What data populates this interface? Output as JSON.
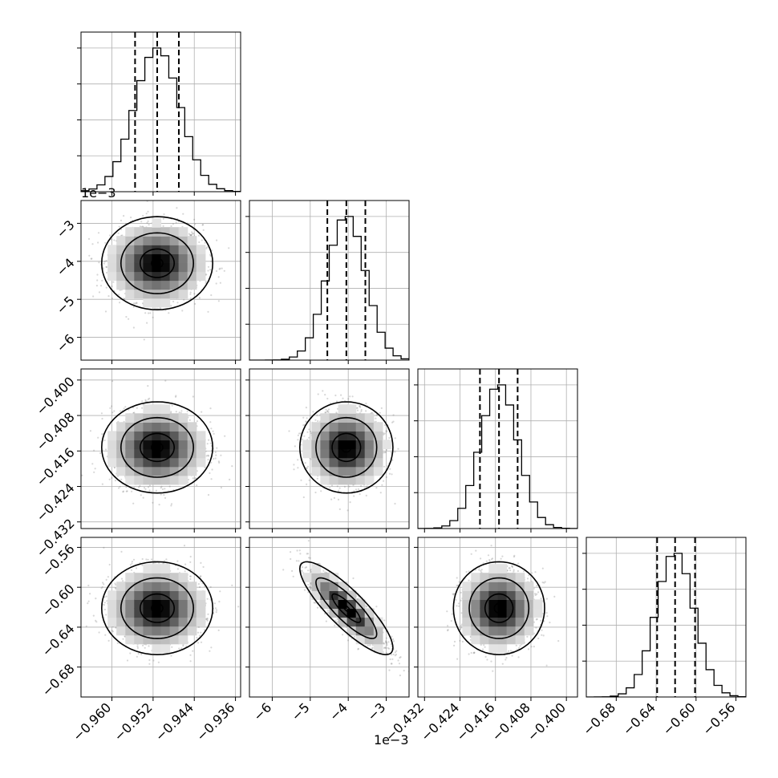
{
  "chart_data": {
    "type": "corner",
    "params": [
      {
        "range": [
          -0.966,
          -0.935
        ],
        "ticks": [
          -0.96,
          -0.952,
          -0.944,
          -0.936
        ],
        "tick_labels": [
          "−0.960",
          "−0.952",
          "−0.944",
          "−0.936"
        ],
        "median": -0.9512,
        "q16": -0.9555,
        "q84": -0.947,
        "sigma": 0.0044,
        "offset_text": ""
      },
      {
        "range": [
          -6.6,
          -2.4
        ],
        "ticks": [
          -6,
          -5,
          -4,
          -3
        ],
        "tick_labels": [
          "−6",
          "−5",
          "−4",
          "−3"
        ],
        "median": -4.05,
        "q16": -4.55,
        "q84": -3.55,
        "sigma": 0.5,
        "offset_text": "1e−3"
      },
      {
        "range": [
          -0.4335,
          -0.3975
        ],
        "ticks": [
          -0.432,
          -0.424,
          -0.416,
          -0.408,
          -0.4
        ],
        "tick_labels": [
          "−0.432",
          "−0.424",
          "−0.416",
          "−0.408",
          "−0.400"
        ],
        "median": -0.4152,
        "q16": -0.4195,
        "q84": -0.411,
        "sigma": 0.0042,
        "offset_text": ""
      },
      {
        "range": [
          -0.71,
          -0.55
        ],
        "ticks": [
          -0.68,
          -0.64,
          -0.6,
          -0.56
        ],
        "tick_labels": [
          "−0.68",
          "−0.64",
          "−0.60",
          "−0.56"
        ],
        "median": -0.621,
        "q16": -0.639,
        "q84": -0.601,
        "sigma": 0.019,
        "offset_text": ""
      }
    ],
    "correlations": [
      {
        "pair": [
          0,
          1
        ],
        "rho": 0.0
      },
      {
        "pair": [
          0,
          2
        ],
        "rho": 0.0
      },
      {
        "pair": [
          1,
          2
        ],
        "rho": 0.0
      },
      {
        "pair": [
          0,
          3
        ],
        "rho": 0.0
      },
      {
        "pair": [
          1,
          3
        ],
        "rho": -0.85
      },
      {
        "pair": [
          2,
          3
        ],
        "rho": 0.0
      }
    ],
    "grid": true,
    "histogram_bins": 20,
    "quantile_lines": [
      0.16,
      0.5,
      0.84
    ]
  }
}
